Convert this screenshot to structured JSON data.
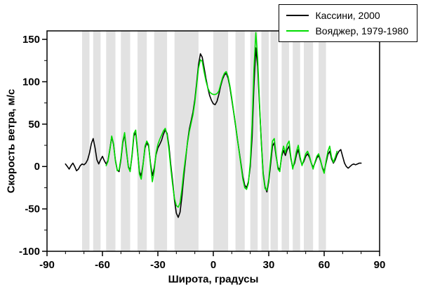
{
  "chart_data": {
    "type": "line",
    "title": "",
    "xlabel": "Широта, градусы",
    "ylabel": "Скорость ветра, м/с",
    "xlim": [
      -90,
      90
    ],
    "ylim": [
      -100,
      160
    ],
    "xticks": [
      -90,
      -60,
      -30,
      0,
      30,
      60,
      90
    ],
    "yticks": [
      -100,
      -50,
      0,
      50,
      100,
      150
    ],
    "grid": false,
    "legend": {
      "position": "top-right",
      "entries": [
        {
          "label": "Кассини, 2000",
          "color": "#000000"
        },
        {
          "label": "Вояджер, 1979-1980",
          "color": "#00dd00"
        }
      ]
    },
    "bands": {
      "color": "#e2e2e2",
      "regions": [
        [
          -71,
          -67
        ],
        [
          -65,
          -61
        ],
        [
          -58,
          -53
        ],
        [
          -50,
          -45
        ],
        [
          -41,
          -36
        ],
        [
          -32,
          -25
        ],
        [
          -21,
          -8
        ],
        [
          0,
          8
        ],
        [
          12,
          17
        ],
        [
          20,
          24
        ],
        [
          26,
          30
        ],
        [
          31,
          35
        ],
        [
          37,
          41
        ],
        [
          43,
          47
        ],
        [
          49,
          54
        ],
        [
          57,
          61
        ]
      ]
    },
    "series": [
      {
        "name": "Кассини, 2000",
        "color": "#000000",
        "points": [
          [
            -80,
            3
          ],
          [
            -79,
            0
          ],
          [
            -78,
            -3
          ],
          [
            -77,
            1
          ],
          [
            -76,
            4
          ],
          [
            -75,
            0
          ],
          [
            -74,
            -5
          ],
          [
            -73,
            -3
          ],
          [
            -72,
            1
          ],
          [
            -71,
            3
          ],
          [
            -70,
            2
          ],
          [
            -69,
            4
          ],
          [
            -68,
            8
          ],
          [
            -67,
            16
          ],
          [
            -66,
            27
          ],
          [
            -65,
            33
          ],
          [
            -64,
            22
          ],
          [
            -63,
            8
          ],
          [
            -62,
            3
          ],
          [
            -61,
            8
          ],
          [
            -60,
            12
          ],
          [
            -59,
            7
          ],
          [
            -58,
            3
          ],
          [
            -57,
            7
          ],
          [
            -56,
            20
          ],
          [
            -55,
            35
          ],
          [
            -54,
            26
          ],
          [
            -53,
            8
          ],
          [
            -52,
            -4
          ],
          [
            -51,
            -6
          ],
          [
            -50,
            8
          ],
          [
            -49,
            28
          ],
          [
            -48,
            38
          ],
          [
            -47,
            18
          ],
          [
            -46,
            0
          ],
          [
            -45,
            -5
          ],
          [
            -44,
            12
          ],
          [
            -43,
            36
          ],
          [
            -42,
            40
          ],
          [
            -41,
            18
          ],
          [
            -40,
            -6
          ],
          [
            -39,
            -11
          ],
          [
            -38,
            3
          ],
          [
            -37,
            22
          ],
          [
            -36,
            28
          ],
          [
            -35,
            24
          ],
          [
            -34,
            4
          ],
          [
            -33,
            -11
          ],
          [
            -32,
            -2
          ],
          [
            -31,
            14
          ],
          [
            -30,
            22
          ],
          [
            -29,
            26
          ],
          [
            -28,
            31
          ],
          [
            -27,
            38
          ],
          [
            -26,
            43
          ],
          [
            -25,
            39
          ],
          [
            -24,
            24
          ],
          [
            -23,
            2
          ],
          [
            -22,
            -18
          ],
          [
            -21,
            -40
          ],
          [
            -20,
            -55
          ],
          [
            -19,
            -60
          ],
          [
            -18,
            -54
          ],
          [
            -17,
            -36
          ],
          [
            -16,
            -12
          ],
          [
            -15,
            8
          ],
          [
            -14,
            28
          ],
          [
            -13,
            44
          ],
          [
            -12,
            54
          ],
          [
            -11,
            64
          ],
          [
            -10,
            79
          ],
          [
            -9,
            99
          ],
          [
            -8,
            120
          ],
          [
            -7,
            133
          ],
          [
            -6,
            129
          ],
          [
            -5,
            117
          ],
          [
            -4,
            104
          ],
          [
            -3,
            93
          ],
          [
            -2,
            84
          ],
          [
            -1,
            78
          ],
          [
            0,
            74
          ],
          [
            1,
            73
          ],
          [
            2,
            77
          ],
          [
            3,
            85
          ],
          [
            4,
            95
          ],
          [
            5,
            103
          ],
          [
            6,
            108
          ],
          [
            7,
            110
          ],
          [
            8,
            104
          ],
          [
            9,
            93
          ],
          [
            10,
            79
          ],
          [
            11,
            64
          ],
          [
            12,
            49
          ],
          [
            13,
            33
          ],
          [
            14,
            18
          ],
          [
            15,
            3
          ],
          [
            16,
            -12
          ],
          [
            17,
            -22
          ],
          [
            18,
            -25
          ],
          [
            19,
            -18
          ],
          [
            20,
            0
          ],
          [
            21,
            35
          ],
          [
            22,
            95
          ],
          [
            23,
            140
          ],
          [
            24,
            118
          ],
          [
            25,
            72
          ],
          [
            26,
            28
          ],
          [
            27,
            -8
          ],
          [
            28,
            -24
          ],
          [
            29,
            -30
          ],
          [
            30,
            -18
          ],
          [
            31,
            2
          ],
          [
            32,
            24
          ],
          [
            33,
            28
          ],
          [
            34,
            12
          ],
          [
            35,
            -1
          ],
          [
            36,
            -4
          ],
          [
            37,
            12
          ],
          [
            38,
            19
          ],
          [
            39,
            13
          ],
          [
            40,
            20
          ],
          [
            41,
            24
          ],
          [
            42,
            9
          ],
          [
            43,
            -1
          ],
          [
            44,
            4
          ],
          [
            45,
            14
          ],
          [
            46,
            20
          ],
          [
            47,
            9
          ],
          [
            48,
            2
          ],
          [
            49,
            6
          ],
          [
            50,
            12
          ],
          [
            51,
            15
          ],
          [
            52,
            11
          ],
          [
            53,
            4
          ],
          [
            54,
            -1
          ],
          [
            55,
            4
          ],
          [
            56,
            10
          ],
          [
            57,
            13
          ],
          [
            58,
            7
          ],
          [
            59,
            -1
          ],
          [
            60,
            -6
          ],
          [
            61,
            4
          ],
          [
            62,
            14
          ],
          [
            63,
            18
          ],
          [
            64,
            9
          ],
          [
            65,
            4
          ],
          [
            66,
            8
          ],
          [
            67,
            14
          ],
          [
            68,
            18
          ],
          [
            69,
            20
          ],
          [
            70,
            12
          ],
          [
            71,
            4
          ],
          [
            72,
            0
          ],
          [
            73,
            -2
          ],
          [
            74,
            0
          ],
          [
            75,
            2
          ],
          [
            76,
            3
          ],
          [
            77,
            2
          ],
          [
            78,
            3
          ],
          [
            79,
            4
          ],
          [
            80,
            4
          ]
        ]
      },
      {
        "name": "Вояджер, 1979-1980",
        "color": "#00dd00",
        "points": [
          [
            -58,
            1
          ],
          [
            -57,
            6
          ],
          [
            -56,
            19
          ],
          [
            -55,
            36
          ],
          [
            -54,
            27
          ],
          [
            -53,
            7
          ],
          [
            -52,
            -5
          ],
          [
            -51,
            -4
          ],
          [
            -50,
            10
          ],
          [
            -49,
            30
          ],
          [
            -48,
            40
          ],
          [
            -47,
            20
          ],
          [
            -46,
            -1
          ],
          [
            -45,
            -6
          ],
          [
            -44,
            14
          ],
          [
            -43,
            39
          ],
          [
            -42,
            43
          ],
          [
            -41,
            20
          ],
          [
            -40,
            -9
          ],
          [
            -39,
            -15
          ],
          [
            -38,
            2
          ],
          [
            -37,
            24
          ],
          [
            -36,
            30
          ],
          [
            -35,
            26
          ],
          [
            -34,
            2
          ],
          [
            -33,
            -18
          ],
          [
            -32,
            -6
          ],
          [
            -31,
            16
          ],
          [
            -30,
            26
          ],
          [
            -29,
            32
          ],
          [
            -28,
            37
          ],
          [
            -27,
            42
          ],
          [
            -26,
            45
          ],
          [
            -25,
            37
          ],
          [
            -24,
            20
          ],
          [
            -23,
            -2
          ],
          [
            -22,
            -22
          ],
          [
            -21,
            -38
          ],
          [
            -20,
            -46
          ],
          [
            -19,
            -48
          ],
          [
            -18,
            -43
          ],
          [
            -17,
            -27
          ],
          [
            -16,
            -6
          ],
          [
            -15,
            11
          ],
          [
            -14,
            27
          ],
          [
            -13,
            41
          ],
          [
            -12,
            51
          ],
          [
            -11,
            61
          ],
          [
            -10,
            76
          ],
          [
            -9,
            96
          ],
          [
            -8,
            116
          ],
          [
            -7,
            126
          ],
          [
            -6,
            124
          ],
          [
            -5,
            112
          ],
          [
            -4,
            101
          ],
          [
            -3,
            93
          ],
          [
            -2,
            88
          ],
          [
            -1,
            86
          ],
          [
            0,
            85
          ],
          [
            1,
            85
          ],
          [
            2,
            86
          ],
          [
            3,
            89
          ],
          [
            4,
            97
          ],
          [
            5,
            105
          ],
          [
            6,
            110
          ],
          [
            7,
            112
          ],
          [
            8,
            106
          ],
          [
            9,
            95
          ],
          [
            10,
            81
          ],
          [
            11,
            65
          ],
          [
            12,
            50
          ],
          [
            13,
            34
          ],
          [
            14,
            17
          ],
          [
            15,
            1
          ],
          [
            16,
            -15
          ],
          [
            17,
            -25
          ],
          [
            18,
            -27
          ],
          [
            19,
            -20
          ],
          [
            20,
            5
          ],
          [
            21,
            50
          ],
          [
            22,
            115
          ],
          [
            23,
            158
          ],
          [
            24,
            128
          ],
          [
            25,
            76
          ],
          [
            26,
            26
          ],
          [
            27,
            -10
          ],
          [
            28,
            -26
          ],
          [
            29,
            -28
          ],
          [
            30,
            -15
          ],
          [
            31,
            8
          ],
          [
            32,
            30
          ],
          [
            33,
            33
          ],
          [
            34,
            14
          ],
          [
            35,
            -3
          ],
          [
            36,
            -6
          ],
          [
            37,
            14
          ],
          [
            38,
            24
          ],
          [
            39,
            16
          ],
          [
            40,
            26
          ],
          [
            41,
            30
          ],
          [
            42,
            11
          ],
          [
            43,
            -3
          ],
          [
            44,
            7
          ],
          [
            45,
            18
          ],
          [
            46,
            25
          ],
          [
            47,
            11
          ],
          [
            48,
            1
          ],
          [
            49,
            8
          ],
          [
            50,
            15
          ],
          [
            51,
            18
          ],
          [
            52,
            13
          ],
          [
            53,
            4
          ],
          [
            54,
            -3
          ],
          [
            55,
            5
          ],
          [
            56,
            12
          ],
          [
            57,
            15
          ],
          [
            58,
            8
          ],
          [
            59,
            -2
          ],
          [
            60,
            -8
          ],
          [
            61,
            6
          ],
          [
            62,
            18
          ],
          [
            63,
            24
          ],
          [
            64,
            11
          ],
          [
            65,
            5
          ],
          [
            66,
            11
          ],
          [
            67,
            18
          ]
        ]
      }
    ]
  }
}
